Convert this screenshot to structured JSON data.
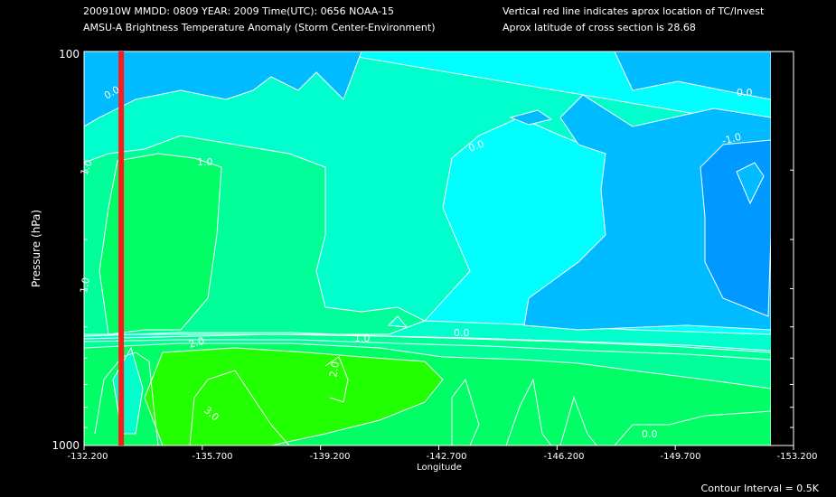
{
  "header": {
    "line1_left": "200910W  MMDD: 0809 YEAR: 2009 Time(UTC): 0656 NOAA-15",
    "line2_left": "AMSU-A Brightness Temperature Anomaly (Storm Center-Environment)",
    "line1_right": "Vertical red line indicates aprox location of TC/Invest",
    "line2_right": "Aprox latitude of cross section is 28.68"
  },
  "footer": {
    "contour_interval": "Contour Interval = 0.5K"
  },
  "chart_data": {
    "type": "heatmap",
    "xlabel": "Longitude",
    "ylabel": "Pressure (hPa)",
    "xlim": [
      -132.2,
      -153.2
    ],
    "x_ticks": [
      "-132.200",
      "-135.700",
      "-139.200",
      "-142.700",
      "-146.200",
      "-149.700",
      "-153.200"
    ],
    "y_scale": "log",
    "ylim": [
      1000,
      100
    ],
    "y_ticks": [
      "100",
      "1000"
    ],
    "storm_longitude": -133.3,
    "contour_labels": [
      "0.0",
      "0.0",
      "0.0",
      "-1.0",
      "1.0",
      "1.0",
      "1.0",
      "1.0",
      "2.0",
      "2.0",
      "3.0",
      "0.0",
      "0.0"
    ],
    "colors": {
      "cyan": "#00ffff",
      "aqua_green": "#00ffcc",
      "sea_green": "#00ff99",
      "green": "#00ff66",
      "bright_green": "#22ff00",
      "sky_blue": "#00bbff",
      "deep_blue": "#0099ff",
      "storm_line": "#ff1a1a"
    }
  }
}
